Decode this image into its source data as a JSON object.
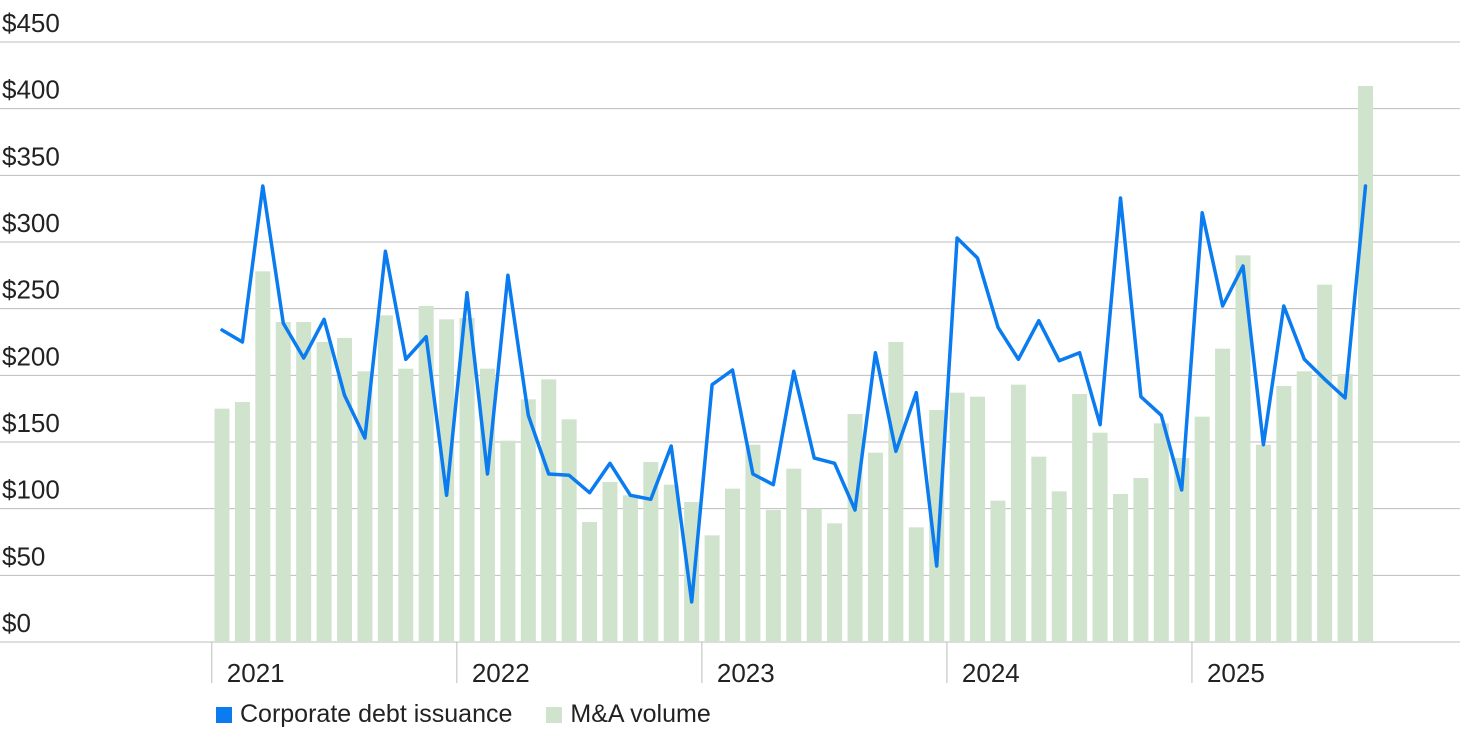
{
  "chart_data": {
    "type": "bar",
    "title": "",
    "xlabel": "",
    "ylabel": "",
    "ylim": [
      0,
      450
    ],
    "y_ticks": [
      "$0",
      "$50",
      "$100",
      "$150",
      "$200",
      "$250",
      "$300",
      "$350",
      "$400",
      "$450"
    ],
    "year_labels": [
      "2021",
      "2022",
      "2023",
      "2024",
      "2025"
    ],
    "grid": true,
    "legend_position": "bottom-left",
    "colors": {
      "line": "#0a7cf0",
      "bar": "#cfe3cd",
      "grid": "#bdbdbd"
    },
    "series": [
      {
        "name": "M&A volume",
        "kind": "bar",
        "values": [
          175,
          180,
          278,
          240,
          240,
          225,
          228,
          203,
          245,
          205,
          252,
          242,
          243,
          205,
          151,
          182,
          197,
          167,
          90,
          120,
          110,
          135,
          118,
          105,
          80,
          115,
          148,
          99,
          130,
          100,
          89,
          171,
          142,
          225,
          86,
          174,
          187,
          184,
          106,
          193,
          139,
          113,
          186,
          157,
          111,
          123,
          164,
          138,
          169,
          220,
          290,
          148,
          192,
          203,
          268,
          201,
          417
        ]
      },
      {
        "name": "Corporate debt issuance",
        "kind": "line",
        "values": [
          234,
          225,
          342,
          239,
          213,
          242,
          185,
          153,
          293,
          212,
          229,
          110,
          262,
          126,
          275,
          170,
          126,
          125,
          112,
          134,
          110,
          107,
          147,
          30,
          193,
          204,
          126,
          118,
          203,
          138,
          134,
          99,
          217,
          143,
          187,
          57,
          303,
          288,
          236,
          212,
          241,
          211,
          217,
          163,
          333,
          184,
          170,
          114,
          322,
          252,
          282,
          148,
          252,
          212,
          197,
          183,
          342
        ]
      }
    ]
  }
}
